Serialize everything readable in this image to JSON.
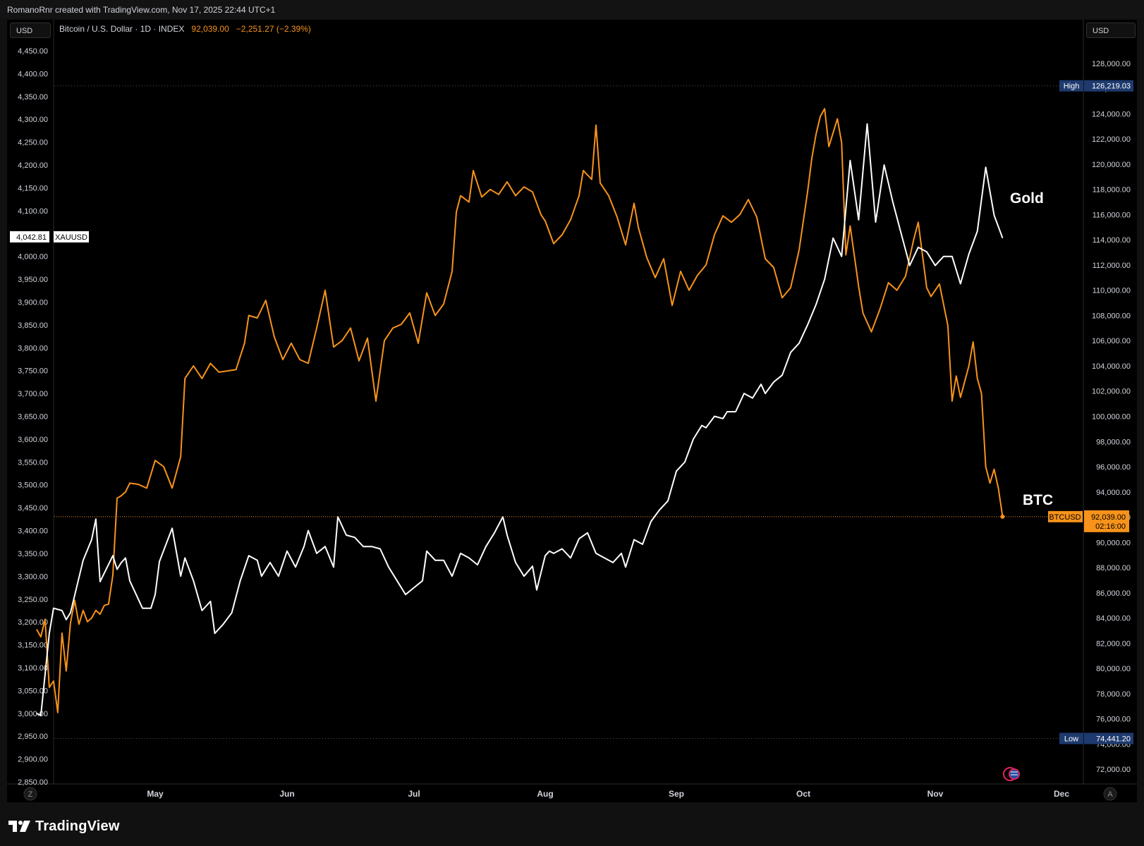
{
  "header": {
    "credit": "RomanoRnr created with TradingView.com, Nov 17, 2025 22:44 UTC+1"
  },
  "legend": {
    "symbol": "Bitcoin / U.S. Dollar · 1D · INDEX",
    "last": "92,039.00",
    "change": "−2,251.27 (−2.39%)"
  },
  "units": {
    "left": "USD",
    "right": "USD"
  },
  "corner_buttons": {
    "left": "Z",
    "right": "A"
  },
  "brand": {
    "name": "TradingView"
  },
  "annotations": {
    "gold": "Gold",
    "btc": "BTC"
  },
  "colors": {
    "btc": "#f7931a",
    "gold": "#ffffff",
    "background": "#000000",
    "high_low_label": "#1e3a6e"
  },
  "chart_data": {
    "type": "line",
    "x_axis": {
      "labels": [
        "May",
        "Jun",
        "Jul",
        "Aug",
        "Sep",
        "Oct",
        "Nov",
        "Dec"
      ]
    },
    "y_left": {
      "label": "XAUUSD",
      "range": [
        2850,
        4450
      ],
      "ticks": [
        "4,450.00",
        "4,400.00",
        "4,350.00",
        "4,300.00",
        "4,250.00",
        "4,200.00",
        "4,150.00",
        "4,100.00",
        "4,050.00",
        "4,000.00",
        "3,950.00",
        "3,900.00",
        "3,850.00",
        "3,800.00",
        "3,750.00",
        "3,700.00",
        "3,650.00",
        "3,600.00",
        "3,550.00",
        "3,500.00",
        "3,450.00",
        "3,400.00",
        "3,350.00",
        "3,300.00",
        "3,250.00",
        "3,200.00",
        "3,150.00",
        "3,100.00",
        "3,050.00",
        "3,000.00",
        "2,950.00",
        "2,900.00",
        "2,850.00"
      ],
      "current": "4,042.81",
      "current_label": "XAUUSD"
    },
    "y_right": {
      "label": "BTCUSD",
      "range": [
        71000,
        129000
      ],
      "ticks": [
        "128,000.00",
        "126,000.00",
        "124,000.00",
        "122,000.00",
        "120,000.00",
        "118,000.00",
        "116,000.00",
        "114,000.00",
        "112,000.00",
        "110,000.00",
        "108,000.00",
        "106,000.00",
        "104,000.00",
        "102,000.00",
        "100,000.00",
        "98,000.00",
        "96,000.00",
        "94,000.00",
        "92,000.00",
        "90,000.00",
        "88,000.00",
        "86,000.00",
        "84,000.00",
        "82,000.00",
        "80,000.00",
        "78,000.00",
        "76,000.00",
        "74,000.00",
        "72,000.00"
      ],
      "current": "92,039.00",
      "current_label": "BTCUSD",
      "countdown": "02:16:00",
      "high": {
        "label": "High",
        "value": "126,219.03"
      },
      "low": {
        "label": "Low",
        "value": "74,441.20"
      }
    },
    "series": [
      {
        "name": "BTC",
        "axis": "right",
        "dates": [
          "2025-04-03",
          "2025-04-04",
          "2025-04-05",
          "2025-04-06",
          "2025-04-07",
          "2025-04-08",
          "2025-04-09",
          "2025-04-10",
          "2025-04-11",
          "2025-04-12",
          "2025-04-13",
          "2025-04-14",
          "2025-04-15",
          "2025-04-16",
          "2025-04-17",
          "2025-04-18",
          "2025-04-19",
          "2025-04-20",
          "2025-04-21",
          "2025-04-22",
          "2025-04-23",
          "2025-04-24",
          "2025-04-25",
          "2025-04-27",
          "2025-04-29",
          "2025-05-01",
          "2025-05-03",
          "2025-05-05",
          "2025-05-07",
          "2025-05-08",
          "2025-05-10",
          "2025-05-12",
          "2025-05-14",
          "2025-05-16",
          "2025-05-18",
          "2025-05-20",
          "2025-05-22",
          "2025-05-23",
          "2025-05-25",
          "2025-05-27",
          "2025-05-29",
          "2025-05-31",
          "2025-06-02",
          "2025-06-04",
          "2025-06-06",
          "2025-06-08",
          "2025-06-10",
          "2025-06-12",
          "2025-06-14",
          "2025-06-16",
          "2025-06-18",
          "2025-06-20",
          "2025-06-22",
          "2025-06-24",
          "2025-06-26",
          "2025-06-28",
          "2025-06-30",
          "2025-07-02",
          "2025-07-04",
          "2025-07-06",
          "2025-07-08",
          "2025-07-10",
          "2025-07-11",
          "2025-07-12",
          "2025-07-14",
          "2025-07-15",
          "2025-07-17",
          "2025-07-19",
          "2025-07-21",
          "2025-07-23",
          "2025-07-25",
          "2025-07-27",
          "2025-07-29",
          "2025-07-31",
          "2025-08-01",
          "2025-08-03",
          "2025-08-05",
          "2025-08-07",
          "2025-08-09",
          "2025-08-10",
          "2025-08-12",
          "2025-08-13",
          "2025-08-14",
          "2025-08-16",
          "2025-08-18",
          "2025-08-20",
          "2025-08-22",
          "2025-08-23",
          "2025-08-25",
          "2025-08-27",
          "2025-08-29",
          "2025-08-31",
          "2025-09-02",
          "2025-09-04",
          "2025-09-06",
          "2025-09-08",
          "2025-09-10",
          "2025-09-12",
          "2025-09-14",
          "2025-09-16",
          "2025-09-18",
          "2025-09-20",
          "2025-09-22",
          "2025-09-24",
          "2025-09-26",
          "2025-09-28",
          "2025-09-30",
          "2025-10-02",
          "2025-10-03",
          "2025-10-04",
          "2025-10-05",
          "2025-10-06",
          "2025-10-07",
          "2025-10-09",
          "2025-10-10",
          "2025-10-11",
          "2025-10-12",
          "2025-10-14",
          "2025-10-15",
          "2025-10-17",
          "2025-10-19",
          "2025-10-21",
          "2025-10-23",
          "2025-10-25",
          "2025-10-27",
          "2025-10-28",
          "2025-10-30",
          "2025-10-31",
          "2025-11-02",
          "2025-11-04",
          "2025-11-05",
          "2025-11-06",
          "2025-11-07",
          "2025-11-09",
          "2025-11-10",
          "2025-11-11",
          "2025-11-12",
          "2025-11-13",
          "2025-11-14",
          "2025-11-15",
          "2025-11-16",
          "2025-11-17"
        ],
        "values": [
          83100,
          82500,
          83900,
          78500,
          79000,
          76500,
          82800,
          79800,
          83600,
          85400,
          83500,
          84600,
          83700,
          84000,
          84600,
          84300,
          85000,
          85100,
          87400,
          93500,
          93700,
          94000,
          94700,
          94600,
          94300,
          96500,
          96000,
          94300,
          96800,
          103000,
          104000,
          103000,
          104200,
          103500,
          103600,
          103700,
          105800,
          108000,
          107800,
          109200,
          106300,
          104500,
          105800,
          104500,
          104200,
          107000,
          110000,
          105500,
          106000,
          107000,
          104400,
          106200,
          101200,
          106000,
          107000,
          107300,
          108200,
          105800,
          109800,
          108000,
          108900,
          111500,
          116200,
          117500,
          117000,
          119500,
          117400,
          118000,
          117600,
          118600,
          117500,
          118200,
          117800,
          116000,
          115500,
          113700,
          114400,
          115600,
          117500,
          119500,
          118800,
          123100,
          118500,
          117500,
          115800,
          113600,
          116900,
          115000,
          112600,
          111000,
          112500,
          108800,
          111500,
          110000,
          111200,
          112000,
          114400,
          115900,
          115400,
          116000,
          117200,
          115800,
          112500,
          111800,
          109400,
          110200,
          113200,
          117800,
          120500,
          122400,
          123800,
          124400,
          121400,
          123600,
          121700,
          112800,
          115100,
          110300,
          108200,
          106700,
          108500,
          110600,
          110000,
          111100,
          114100,
          115400,
          110200,
          109500,
          110500,
          107200,
          101200,
          103200,
          101500,
          104000,
          105900,
          103000,
          101800,
          96000,
          94700,
          95800,
          94300,
          92039
        ]
      },
      {
        "name": "Gold",
        "axis": "left",
        "dates": [
          "2025-04-03",
          "2025-04-04",
          "2025-04-06",
          "2025-04-07",
          "2025-04-09",
          "2025-04-10",
          "2025-04-11",
          "2025-04-14",
          "2025-04-16",
          "2025-04-17",
          "2025-04-18",
          "2025-04-21",
          "2025-04-22",
          "2025-04-23",
          "2025-04-24",
          "2025-04-25",
          "2025-04-28",
          "2025-04-30",
          "2025-05-01",
          "2025-05-02",
          "2025-05-05",
          "2025-05-07",
          "2025-05-08",
          "2025-05-10",
          "2025-05-12",
          "2025-05-14",
          "2025-05-15",
          "2025-05-17",
          "2025-05-19",
          "2025-05-21",
          "2025-05-23",
          "2025-05-25",
          "2025-05-26",
          "2025-05-28",
          "2025-05-30",
          "2025-06-01",
          "2025-06-03",
          "2025-06-05",
          "2025-06-06",
          "2025-06-08",
          "2025-06-10",
          "2025-06-12",
          "2025-06-13",
          "2025-06-15",
          "2025-06-17",
          "2025-06-19",
          "2025-06-21",
          "2025-06-23",
          "2025-06-25",
          "2025-06-27",
          "2025-06-29",
          "2025-07-01",
          "2025-07-03",
          "2025-07-04",
          "2025-07-06",
          "2025-07-08",
          "2025-07-10",
          "2025-07-12",
          "2025-07-14",
          "2025-07-16",
          "2025-07-18",
          "2025-07-20",
          "2025-07-22",
          "2025-07-23",
          "2025-07-25",
          "2025-07-27",
          "2025-07-29",
          "2025-07-30",
          "2025-08-01",
          "2025-08-02",
          "2025-08-03",
          "2025-08-05",
          "2025-08-07",
          "2025-08-09",
          "2025-08-11",
          "2025-08-13",
          "2025-08-15",
          "2025-08-17",
          "2025-08-19",
          "2025-08-20",
          "2025-08-22",
          "2025-08-24",
          "2025-08-26",
          "2025-08-28",
          "2025-08-30",
          "2025-09-01",
          "2025-09-03",
          "2025-09-05",
          "2025-09-07",
          "2025-09-08",
          "2025-09-10",
          "2025-09-12",
          "2025-09-13",
          "2025-09-15",
          "2025-09-17",
          "2025-09-19",
          "2025-09-21",
          "2025-09-22",
          "2025-09-24",
          "2025-09-26",
          "2025-09-28",
          "2025-09-30",
          "2025-10-02",
          "2025-10-04",
          "2025-10-06",
          "2025-10-08",
          "2025-10-10",
          "2025-10-12",
          "2025-10-14",
          "2025-10-16",
          "2025-10-18",
          "2025-10-20",
          "2025-10-22",
          "2025-10-24",
          "2025-10-26",
          "2025-10-28",
          "2025-10-30",
          "2025-11-01",
          "2025-11-03",
          "2025-11-05",
          "2025-11-07",
          "2025-11-09",
          "2025-11-11",
          "2025-11-13",
          "2025-11-15",
          "2025-11-17"
        ],
        "values": [
          3000,
          2995,
          3175,
          3230,
          3225,
          3205,
          3220,
          3335,
          3380,
          3425,
          3288,
          3345,
          3315,
          3330,
          3340,
          3290,
          3230,
          3230,
          3260,
          3332,
          3405,
          3300,
          3340,
          3290,
          3225,
          3245,
          3175,
          3195,
          3220,
          3290,
          3345,
          3335,
          3300,
          3330,
          3300,
          3355,
          3320,
          3365,
          3400,
          3350,
          3365,
          3320,
          3430,
          3390,
          3385,
          3365,
          3365,
          3360,
          3320,
          3290,
          3260,
          3275,
          3290,
          3355,
          3335,
          3335,
          3300,
          3350,
          3340,
          3325,
          3365,
          3395,
          3430,
          3390,
          3330,
          3300,
          3322,
          3270,
          3345,
          3355,
          3350,
          3360,
          3340,
          3382,
          3395,
          3350,
          3340,
          3330,
          3350,
          3320,
          3380,
          3370,
          3420,
          3445,
          3465,
          3530,
          3550,
          3600,
          3630,
          3625,
          3650,
          3645,
          3660,
          3660,
          3700,
          3690,
          3720,
          3700,
          3725,
          3740,
          3790,
          3810,
          3850,
          3895,
          3950,
          4040,
          4000,
          4210,
          4080,
          4290,
          4075,
          4200,
          4120,
          4050,
          3980,
          4020,
          4010,
          3980,
          4000,
          4000,
          3940,
          4005,
          4055,
          4195,
          4090,
          4040
        ]
      }
    ]
  }
}
